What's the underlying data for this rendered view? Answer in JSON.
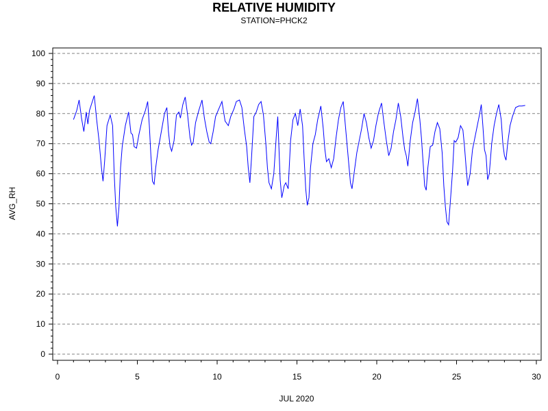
{
  "chart_data": {
    "type": "line",
    "title": "RELATIVE HUMIDITY",
    "subtitle": "STATION=PHCK2",
    "xlabel": "JUL 2020",
    "ylabel": "AVG_RH",
    "xlim": [
      0,
      30
    ],
    "ylim": [
      0,
      100
    ],
    "x_ticks": [
      0,
      5,
      10,
      15,
      20,
      25,
      30
    ],
    "y_ticks": [
      0,
      10,
      20,
      30,
      40,
      50,
      60,
      70,
      80,
      90,
      100
    ],
    "grid": "horizontal dashed",
    "series_color": "#0000ff",
    "series": [
      {
        "points": [
          [
            1.0,
            78.0
          ],
          [
            1.2,
            81.0
          ],
          [
            1.35,
            84.5
          ],
          [
            1.5,
            78.5
          ],
          [
            1.65,
            74.0
          ],
          [
            1.8,
            80.5
          ],
          [
            1.9,
            76.5
          ],
          [
            2.0,
            81.0
          ],
          [
            2.15,
            83.5
          ],
          [
            2.3,
            86.0
          ],
          [
            2.45,
            78.0
          ],
          [
            2.6,
            71.0
          ],
          [
            2.75,
            62.0
          ],
          [
            2.85,
            57.5
          ],
          [
            2.95,
            64.0
          ],
          [
            3.1,
            76.0
          ],
          [
            3.3,
            79.5
          ],
          [
            3.45,
            76.0
          ],
          [
            3.55,
            60.0
          ],
          [
            3.65,
            49.0
          ],
          [
            3.75,
            42.5
          ],
          [
            3.85,
            49.0
          ],
          [
            3.95,
            62.0
          ],
          [
            4.05,
            69.0
          ],
          [
            4.25,
            76.0
          ],
          [
            4.45,
            80.5
          ],
          [
            4.6,
            73.5
          ],
          [
            4.7,
            73.0
          ],
          [
            4.8,
            69.0
          ],
          [
            4.95,
            68.5
          ],
          [
            5.1,
            73.0
          ],
          [
            5.3,
            78.0
          ],
          [
            5.5,
            81.0
          ],
          [
            5.65,
            84.0
          ],
          [
            5.75,
            76.0
          ],
          [
            5.85,
            66.0
          ],
          [
            5.95,
            57.5
          ],
          [
            6.05,
            56.5
          ],
          [
            6.15,
            62.0
          ],
          [
            6.3,
            68.0
          ],
          [
            6.5,
            74.0
          ],
          [
            6.7,
            80.0
          ],
          [
            6.85,
            82.0
          ],
          [
            6.95,
            74.0
          ],
          [
            7.05,
            69.0
          ],
          [
            7.15,
            67.5
          ],
          [
            7.3,
            71.0
          ],
          [
            7.45,
            79.5
          ],
          [
            7.6,
            80.5
          ],
          [
            7.7,
            78.5
          ],
          [
            7.85,
            83.0
          ],
          [
            8.0,
            85.5
          ],
          [
            8.15,
            79.5
          ],
          [
            8.3,
            72.0
          ],
          [
            8.4,
            69.5
          ],
          [
            8.5,
            70.5
          ],
          [
            8.65,
            77.0
          ],
          [
            8.85,
            81.0
          ],
          [
            9.05,
            84.5
          ],
          [
            9.2,
            78.5
          ],
          [
            9.35,
            74.0
          ],
          [
            9.5,
            70.5
          ],
          [
            9.6,
            70.0
          ],
          [
            9.75,
            74.0
          ],
          [
            9.9,
            79.0
          ],
          [
            10.1,
            81.5
          ],
          [
            10.3,
            84.0
          ],
          [
            10.5,
            77.5
          ],
          [
            10.7,
            76.0
          ],
          [
            10.85,
            79.0
          ],
          [
            11.05,
            81.5
          ],
          [
            11.2,
            84.0
          ],
          [
            11.4,
            84.5
          ],
          [
            11.55,
            82.0
          ],
          [
            11.7,
            75.0
          ],
          [
            11.85,
            69.0
          ],
          [
            11.95,
            62.0
          ],
          [
            12.05,
            57.0
          ],
          [
            12.15,
            65.0
          ],
          [
            12.3,
            79.0
          ],
          [
            12.45,
            80.5
          ],
          [
            12.6,
            83.0
          ],
          [
            12.75,
            84.0
          ],
          [
            12.9,
            79.5
          ],
          [
            13.05,
            70.0
          ],
          [
            13.15,
            62.0
          ],
          [
            13.25,
            57.0
          ],
          [
            13.4,
            55.0
          ],
          [
            13.55,
            60.0
          ],
          [
            13.7,
            72.0
          ],
          [
            13.8,
            79.0
          ],
          [
            13.95,
            58.0
          ],
          [
            14.05,
            52.0
          ],
          [
            14.2,
            56.0
          ],
          [
            14.3,
            57.0
          ],
          [
            14.45,
            55.0
          ],
          [
            14.6,
            71.0
          ],
          [
            14.75,
            78.0
          ],
          [
            14.9,
            80.0
          ],
          [
            15.05,
            76.0
          ],
          [
            15.2,
            81.5
          ],
          [
            15.35,
            76.0
          ],
          [
            15.45,
            65.0
          ],
          [
            15.55,
            55.0
          ],
          [
            15.65,
            49.5
          ],
          [
            15.75,
            52.0
          ],
          [
            15.85,
            62.0
          ],
          [
            16.0,
            70.0
          ],
          [
            16.15,
            73.0
          ],
          [
            16.3,
            78.0
          ],
          [
            16.5,
            82.5
          ],
          [
            16.65,
            75.0
          ],
          [
            16.75,
            68.0
          ],
          [
            16.85,
            64.0
          ],
          [
            17.0,
            65.0
          ],
          [
            17.15,
            62.0
          ],
          [
            17.3,
            65.0
          ],
          [
            17.45,
            72.0
          ],
          [
            17.6,
            78.0
          ],
          [
            17.75,
            82.0
          ],
          [
            17.9,
            84.0
          ],
          [
            18.05,
            75.0
          ],
          [
            18.2,
            66.0
          ],
          [
            18.35,
            57.0
          ],
          [
            18.45,
            55.0
          ],
          [
            18.6,
            61.0
          ],
          [
            18.75,
            67.0
          ],
          [
            18.9,
            71.0
          ],
          [
            19.05,
            75.0
          ],
          [
            19.2,
            80.0
          ],
          [
            19.35,
            77.0
          ],
          [
            19.5,
            72.0
          ],
          [
            19.65,
            68.5
          ],
          [
            19.8,
            71.0
          ],
          [
            19.95,
            76.0
          ],
          [
            20.1,
            80.0
          ],
          [
            20.3,
            83.5
          ],
          [
            20.45,
            77.0
          ],
          [
            20.6,
            71.0
          ],
          [
            20.75,
            66.0
          ],
          [
            20.9,
            68.5
          ],
          [
            21.05,
            74.0
          ],
          [
            21.2,
            78.0
          ],
          [
            21.35,
            83.5
          ],
          [
            21.5,
            79.0
          ],
          [
            21.65,
            72.0
          ],
          [
            21.75,
            68.0
          ],
          [
            21.85,
            66.0
          ],
          [
            21.95,
            62.5
          ],
          [
            22.1,
            71.0
          ],
          [
            22.25,
            77.0
          ],
          [
            22.4,
            80.5
          ],
          [
            22.55,
            85.0
          ],
          [
            22.7,
            78.0
          ],
          [
            22.8,
            72.0
          ],
          [
            22.9,
            64.0
          ],
          [
            23.0,
            56.0
          ],
          [
            23.1,
            54.5
          ],
          [
            23.2,
            62.0
          ],
          [
            23.35,
            69.0
          ],
          [
            23.5,
            69.5
          ],
          [
            23.65,
            74.0
          ],
          [
            23.8,
            77.0
          ],
          [
            23.95,
            75.0
          ],
          [
            24.1,
            67.0
          ],
          [
            24.2,
            56.0
          ],
          [
            24.3,
            49.0
          ],
          [
            24.4,
            44.0
          ],
          [
            24.5,
            43.0
          ],
          [
            24.6,
            50.0
          ],
          [
            24.75,
            61.0
          ],
          [
            24.85,
            71.0
          ],
          [
            24.95,
            70.5
          ],
          [
            25.1,
            72.0
          ],
          [
            25.25,
            76.0
          ],
          [
            25.4,
            74.5
          ],
          [
            25.5,
            69.0
          ],
          [
            25.6,
            62.0
          ],
          [
            25.7,
            56.0
          ],
          [
            25.85,
            60.0
          ],
          [
            26.0,
            68.0
          ],
          [
            26.15,
            72.0
          ],
          [
            26.3,
            76.0
          ],
          [
            26.45,
            80.0
          ],
          [
            26.55,
            83.0
          ],
          [
            26.65,
            76.0
          ],
          [
            26.75,
            68.0
          ],
          [
            26.85,
            66.0
          ],
          [
            26.95,
            58.0
          ],
          [
            27.05,
            60.0
          ],
          [
            27.2,
            70.0
          ],
          [
            27.35,
            76.0
          ],
          [
            27.5,
            80.0
          ],
          [
            27.65,
            83.0
          ],
          [
            27.8,
            78.0
          ],
          [
            27.9,
            70.0
          ],
          [
            28.0,
            66.0
          ],
          [
            28.1,
            64.5
          ],
          [
            28.2,
            70.0
          ],
          [
            28.35,
            76.0
          ],
          [
            28.5,
            79.0
          ],
          [
            28.7,
            82.0
          ],
          [
            28.9,
            82.5
          ],
          [
            29.1,
            82.5
          ],
          [
            29.3,
            82.7
          ]
        ]
      }
    ]
  }
}
